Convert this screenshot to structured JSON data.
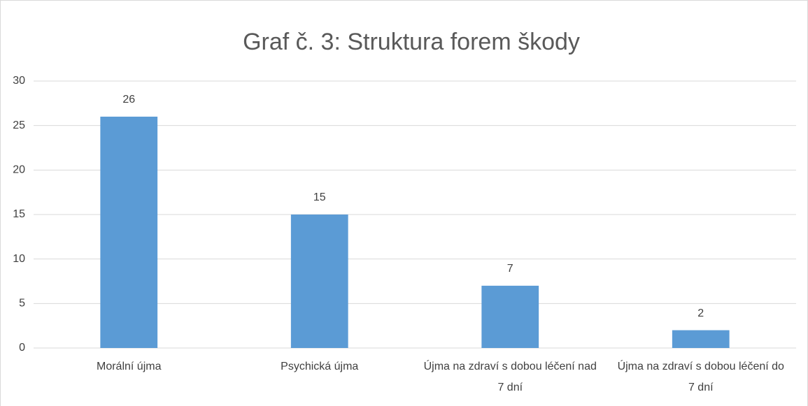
{
  "chart_data": {
    "type": "bar",
    "title": "Graf č. 3: Struktura forem škody",
    "categories": [
      "Morální újma",
      "Psychická újma",
      "Újma na zdraví s dobou léčení nad 7 dní",
      "Újma na zdraví s dobou léčení do 7 dní"
    ],
    "values": [
      26,
      15,
      7,
      2
    ],
    "color": "#5b9bd5",
    "ylim": [
      0,
      30
    ],
    "yticks": [
      0,
      5,
      10,
      15,
      20,
      25,
      30
    ],
    "grid": true
  }
}
